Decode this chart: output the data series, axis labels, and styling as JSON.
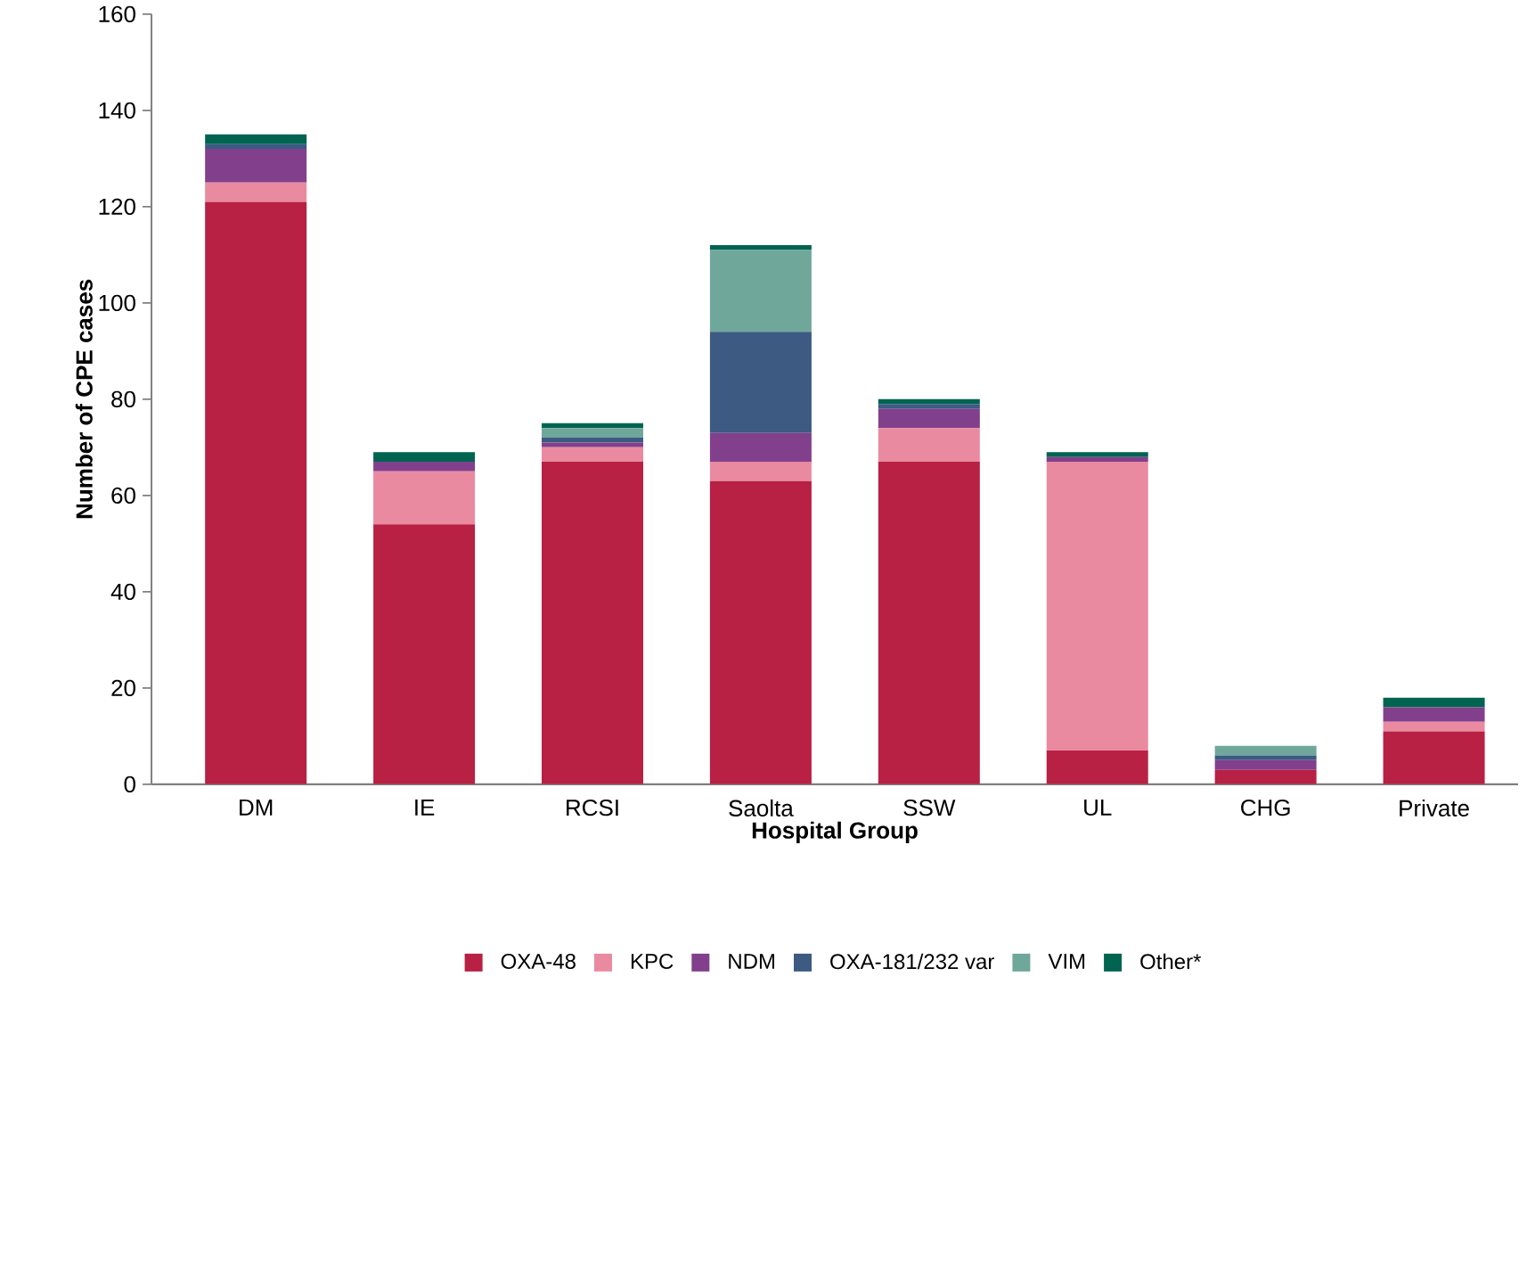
{
  "chart_data": {
    "type": "bar",
    "stacked": true,
    "xlabel": "Hospital Group",
    "ylabel": "Number of CPE cases",
    "categories": [
      "DM",
      "IE",
      "RCSI",
      "Saolta",
      "SSW",
      "UL",
      "CHG",
      "Private"
    ],
    "series": [
      {
        "name": "OXA-48",
        "color": "#b82044",
        "values": [
          121,
          54,
          67,
          63,
          67,
          7,
          3,
          11
        ]
      },
      {
        "name": "KPC",
        "color": "#ea8aa0",
        "values": [
          4,
          11,
          3,
          4,
          7,
          60,
          0,
          2
        ]
      },
      {
        "name": "NDM",
        "color": "#82408c",
        "values": [
          7,
          2,
          1,
          6,
          4,
          1,
          2,
          3
        ]
      },
      {
        "name": "OXA-181/232 var",
        "color": "#3c5a82",
        "values": [
          1,
          0,
          1,
          21,
          1,
          0,
          1,
          0
        ]
      },
      {
        "name": "VIM",
        "color": "#6fa89a",
        "values": [
          0,
          0,
          2,
          17,
          0,
          0,
          2,
          0
        ]
      },
      {
        "name": "Other*",
        "color": "#006450",
        "values": [
          2,
          2,
          1,
          1,
          1,
          1,
          0,
          2
        ]
      }
    ],
    "ylim": [
      0,
      160
    ],
    "yticks": [
      0,
      20,
      40,
      60,
      80,
      100,
      120,
      140,
      160
    ],
    "grid": false,
    "legend": "bottom"
  }
}
